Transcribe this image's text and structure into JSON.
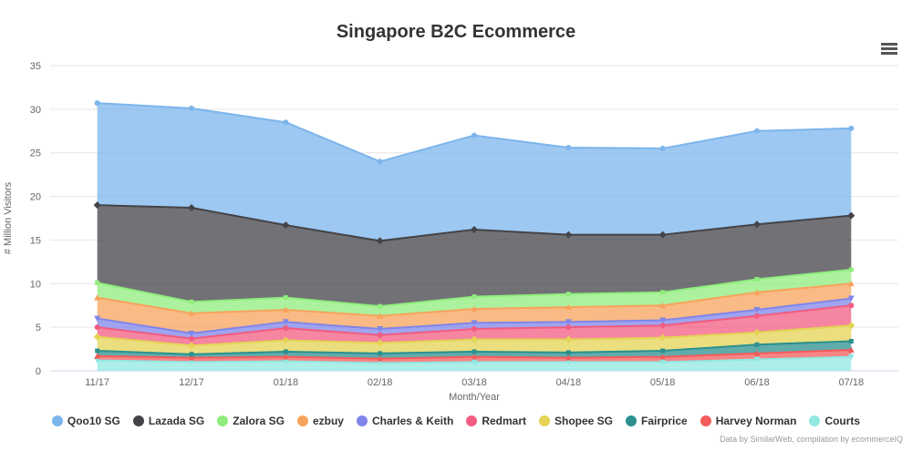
{
  "title": "Singapore B2C Ecommerce",
  "credits": "Data by SimilarWeb, compilation by ecommerceIQ",
  "menu": {
    "icon": "hamburger-menu-icon"
  },
  "chart_data": {
    "type": "area",
    "stacking": "normal",
    "title": "Singapore B2C Ecommerce",
    "xlabel": "Month/Year",
    "ylabel": "# Million Visitors",
    "ylim": [
      0,
      35
    ],
    "ytick_step": 5,
    "grid": true,
    "legend_position": "bottom",
    "categories": [
      "11/17",
      "12/17",
      "01/18",
      "02/18",
      "03/18",
      "04/18",
      "05/18",
      "06/18",
      "07/18"
    ],
    "series": [
      {
        "name": "Qoo10 SG",
        "color": "#7cb5ec",
        "values": [
          11.7,
          11.4,
          11.8,
          9.1,
          10.8,
          10.0,
          9.9,
          10.7,
          10.0
        ]
      },
      {
        "name": "Lazada SG",
        "color": "#434348",
        "values": [
          8.9,
          10.8,
          8.3,
          7.5,
          7.7,
          6.8,
          6.6,
          6.3,
          6.2
        ]
      },
      {
        "name": "Zalora SG",
        "color": "#90ed7d",
        "values": [
          1.7,
          1.3,
          1.4,
          1.1,
          1.4,
          1.5,
          1.5,
          1.5,
          1.6
        ]
      },
      {
        "name": "ezbuy",
        "color": "#f7a35c",
        "values": [
          2.4,
          2.3,
          1.4,
          1.5,
          1.6,
          1.7,
          1.7,
          2.0,
          1.7
        ]
      },
      {
        "name": "Charles & Keith",
        "color": "#8085e9",
        "values": [
          1.0,
          0.6,
          0.7,
          0.7,
          0.7,
          0.6,
          0.6,
          0.7,
          0.8
        ]
      },
      {
        "name": "Redmart",
        "color": "#f15c80",
        "values": [
          1.1,
          0.8,
          1.4,
          0.9,
          1.2,
          1.4,
          1.4,
          1.9,
          2.3
        ]
      },
      {
        "name": "Shopee SG",
        "color": "#e4d354",
        "values": [
          1.6,
          1.0,
          1.3,
          1.2,
          1.4,
          1.5,
          1.5,
          1.4,
          1.8
        ]
      },
      {
        "name": "Fairprice",
        "color": "#2b908f",
        "values": [
          0.6,
          0.4,
          0.6,
          0.6,
          0.6,
          0.6,
          0.7,
          1.0,
          1.0
        ]
      },
      {
        "name": "Harvey Norman",
        "color": "#f45b5b",
        "values": [
          0.5,
          0.5,
          0.5,
          0.5,
          0.6,
          0.5,
          0.6,
          0.7,
          0.8
        ]
      },
      {
        "name": "Courts",
        "color": "#91e8e1",
        "values": [
          1.2,
          1.0,
          1.1,
          0.9,
          1.0,
          1.0,
          1.0,
          1.3,
          1.6
        ]
      }
    ],
    "stacked_totals": [
      30.7,
      30.1,
      28.5,
      24.0,
      27.0,
      25.6,
      25.5,
      27.5,
      27.8
    ],
    "grid_color": "#e6e6e6",
    "axis_line_color": "#ccd6eb",
    "tick_label_color": "#666666"
  }
}
